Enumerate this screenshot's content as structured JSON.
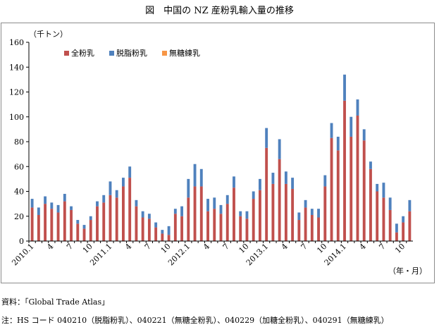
{
  "title": "図　中国の NZ 産粉乳輸入量の推移",
  "source": "資料：「Global Trade Atlas」",
  "note": "注：HS コード 040210（脱脂粉乳）、040221（無糖全粉乳）、040229（加糖全粉乳）、040291（無糖練乳）",
  "colors": {
    "whole": "#c0504d",
    "skim": "#4f81bd",
    "condensed": "#f79646"
  },
  "chart_data": {
    "type": "bar",
    "stacked": true,
    "ylabel": "（千トン）",
    "xlabel": "（年・月）",
    "ylim": [
      0,
      160
    ],
    "yticks": [
      0,
      20,
      40,
      60,
      80,
      100,
      120,
      140,
      160
    ],
    "grid": false,
    "legend": "top-left",
    "x_tick_labels": [
      {
        "index": 0,
        "label": "2010.1"
      },
      {
        "index": 3,
        "label": "4"
      },
      {
        "index": 6,
        "label": "7"
      },
      {
        "index": 9,
        "label": "10"
      },
      {
        "index": 12,
        "label": "2011.1"
      },
      {
        "index": 15,
        "label": "4"
      },
      {
        "index": 18,
        "label": "7"
      },
      {
        "index": 21,
        "label": "10"
      },
      {
        "index": 24,
        "label": "2012.1"
      },
      {
        "index": 27,
        "label": "4"
      },
      {
        "index": 30,
        "label": "7"
      },
      {
        "index": 33,
        "label": "10"
      },
      {
        "index": 36,
        "label": "2013.1"
      },
      {
        "index": 39,
        "label": "4"
      },
      {
        "index": 42,
        "label": "7"
      },
      {
        "index": 45,
        "label": "10"
      },
      {
        "index": 48,
        "label": "2014.1"
      },
      {
        "index": 51,
        "label": "4"
      },
      {
        "index": 54,
        "label": "7"
      },
      {
        "index": 57,
        "label": "10"
      }
    ],
    "series": [
      {
        "name": "全粉乳",
        "color_key": "whole",
        "values": [
          27,
          21,
          30,
          26,
          23,
          32,
          25,
          14,
          10,
          17,
          28,
          31,
          37,
          35,
          44,
          51,
          28,
          19,
          18,
          11,
          6,
          5,
          22,
          20,
          35,
          44,
          44,
          24,
          26,
          22,
          30,
          43,
          20,
          18,
          34,
          41,
          75,
          46,
          66,
          46,
          42,
          17,
          27,
          21,
          19,
          44,
          83,
          73,
          113,
          84,
          101,
          81,
          58,
          40,
          35,
          25,
          7,
          15,
          24
        ]
      },
      {
        "name": "脱脂粉乳",
        "color_key": "skim",
        "values": [
          7,
          6,
          6,
          5,
          6,
          6,
          3,
          3,
          3,
          3,
          4,
          6,
          11,
          6,
          7,
          9,
          5,
          5,
          4,
          4,
          3,
          7,
          4,
          8,
          15,
          18,
          14,
          10,
          9,
          7,
          7,
          9,
          4,
          6,
          6,
          9,
          16,
          9,
          16,
          10,
          9,
          6,
          6,
          5,
          7,
          9,
          12,
          11,
          21,
          16,
          13,
          9,
          6,
          6,
          12,
          10,
          7,
          5,
          9
        ]
      },
      {
        "name": "無糖練乳",
        "color_key": "condensed",
        "values": [
          0,
          0,
          0,
          0,
          0,
          0,
          0,
          0,
          0,
          0,
          0,
          0,
          0,
          0,
          0,
          0,
          0,
          0,
          0,
          0,
          0,
          0,
          0,
          0,
          0,
          0,
          0,
          0,
          0,
          0,
          0,
          0,
          0,
          0,
          0,
          0,
          0,
          0,
          0,
          0,
          0,
          0,
          0,
          0,
          0,
          0,
          0,
          0,
          0,
          0,
          0,
          0,
          0,
          0,
          0,
          0,
          0,
          0,
          0
        ]
      }
    ]
  }
}
